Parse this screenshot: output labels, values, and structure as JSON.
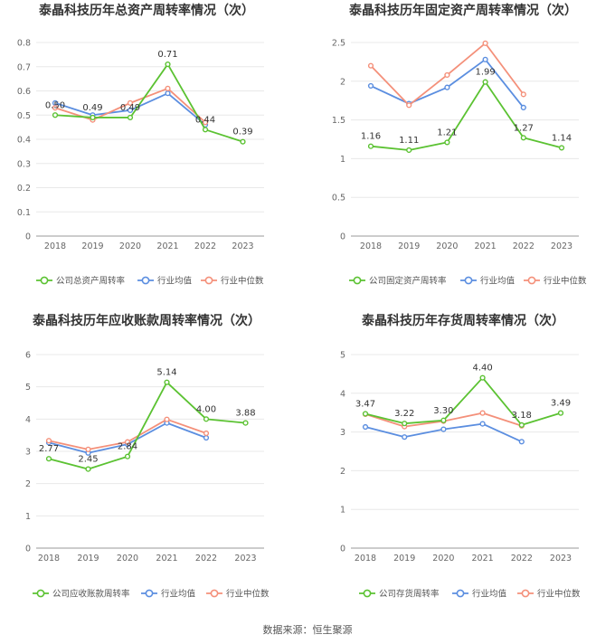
{
  "footer": {
    "source": "数据来源：恒生聚源"
  },
  "colors": {
    "company": "#5bc232",
    "industry_avg": "#5b8ee0",
    "industry_median": "#f4907a"
  },
  "chart_data": [
    {
      "type": "line",
      "title": "泰晶科技历年总资产周转率情况（次）",
      "categories": [
        "2018",
        "2019",
        "2020",
        "2021",
        "2022",
        "2023"
      ],
      "ylim": [
        0,
        0.8
      ],
      "yticks": [
        "0",
        "0.1",
        "0.2",
        "0.3",
        "0.4",
        "0.5",
        "0.6",
        "0.7",
        "0.8"
      ],
      "grid": "horizontal",
      "legend_position": "bottom",
      "series": [
        {
          "name": "公司总资产周转率",
          "values": [
            0.5,
            0.49,
            0.49,
            0.71,
            0.44,
            0.39
          ],
          "labels": [
            "0.50",
            "0.49",
            "0.49",
            "0.71",
            "0.44",
            "0.39"
          ]
        },
        {
          "name": "行业均值",
          "values": [
            0.55,
            0.5,
            0.52,
            0.59,
            0.46,
            null
          ]
        },
        {
          "name": "行业中位数",
          "values": [
            0.53,
            0.48,
            0.55,
            0.61,
            0.47,
            null
          ]
        }
      ]
    },
    {
      "type": "line",
      "title": "泰晶科技历年固定资产周转率情况（次）",
      "categories": [
        "2018",
        "2019",
        "2020",
        "2021",
        "2022",
        "2023"
      ],
      "ylim": [
        0,
        2.5
      ],
      "yticks": [
        "0",
        "0.5",
        "1",
        "1.5",
        "2",
        "2.5"
      ],
      "grid": "horizontal",
      "legend_position": "bottom",
      "series": [
        {
          "name": "公司固定资产周转率",
          "values": [
            1.16,
            1.11,
            1.21,
            1.99,
            1.27,
            1.14
          ],
          "labels": [
            "1.16",
            "1.11",
            "1.21",
            "1.99",
            "1.27",
            "1.14"
          ]
        },
        {
          "name": "行业均值",
          "values": [
            1.94,
            1.71,
            1.92,
            2.28,
            1.66,
            null
          ]
        },
        {
          "name": "行业中位数",
          "values": [
            2.2,
            1.69,
            2.08,
            2.49,
            1.83,
            null
          ]
        }
      ]
    },
    {
      "type": "line",
      "title": "泰晶科技历年应收账款周转率情况（次）",
      "categories": [
        "2018",
        "2019",
        "2020",
        "2021",
        "2022",
        "2023"
      ],
      "ylim": [
        0,
        6
      ],
      "yticks": [
        "0",
        "1",
        "2",
        "3",
        "4",
        "5",
        "6"
      ],
      "grid": "horizontal",
      "legend_position": "bottom",
      "series": [
        {
          "name": "公司应收账款周转率",
          "values": [
            2.77,
            2.45,
            2.84,
            5.14,
            4.0,
            3.88
          ],
          "labels": [
            "2.77",
            "2.45",
            "2.84",
            "5.14",
            "4.00",
            "3.88"
          ]
        },
        {
          "name": "行业均值",
          "values": [
            3.27,
            2.95,
            3.22,
            3.88,
            3.42,
            null
          ]
        },
        {
          "name": "行业中位数",
          "values": [
            3.33,
            3.06,
            3.29,
            3.99,
            3.56,
            null
          ]
        }
      ]
    },
    {
      "type": "line",
      "title": "泰晶科技历年存货周转率情况（次）",
      "categories": [
        "2018",
        "2019",
        "2020",
        "2021",
        "2022",
        "2023"
      ],
      "ylim": [
        0,
        5
      ],
      "yticks": [
        "0",
        "1",
        "2",
        "3",
        "4",
        "5"
      ],
      "grid": "horizontal",
      "legend_position": "bottom",
      "series": [
        {
          "name": "公司存货周转率",
          "values": [
            3.47,
            3.22,
            3.3,
            4.4,
            3.18,
            3.49
          ],
          "labels": [
            "3.47",
            "3.22",
            "3.30",
            "4.40",
            "3.18",
            "3.49"
          ]
        },
        {
          "name": "行业均值",
          "values": [
            3.13,
            2.87,
            3.07,
            3.21,
            2.75,
            null
          ]
        },
        {
          "name": "行业中位数",
          "values": [
            3.46,
            3.14,
            3.28,
            3.49,
            3.16,
            null
          ]
        }
      ]
    }
  ]
}
